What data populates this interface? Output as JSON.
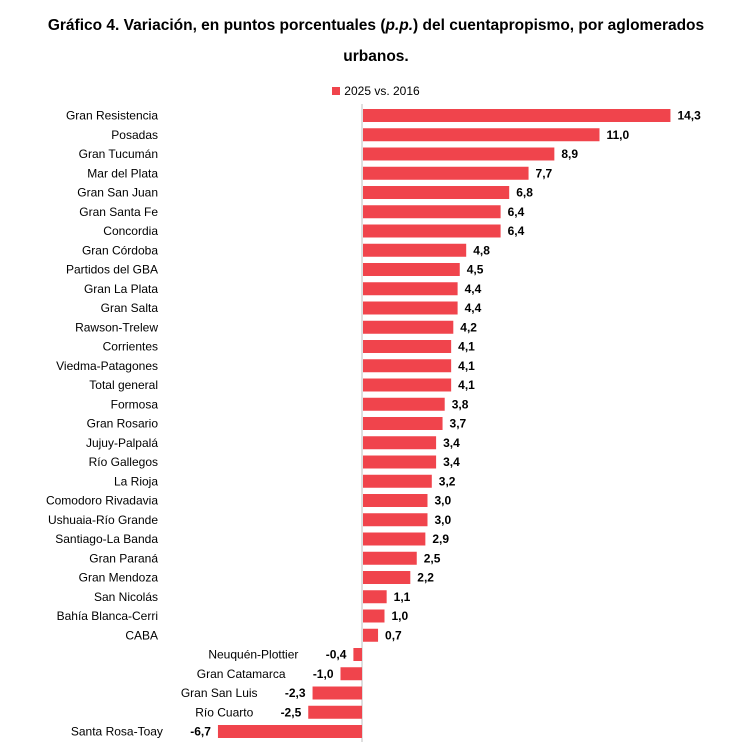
{
  "title": {
    "line1_prefix": "Gráfico 4. Variación, en puntos porcentuales (",
    "line1_italic": "p.p.",
    "line1_suffix": ") del cuentapropismo, por aglomerados",
    "line2": "urbanos."
  },
  "chart_data": {
    "type": "bar",
    "orientation": "horizontal",
    "series": [
      {
        "name": "2025 vs. 2016",
        "color": "#f0444c"
      }
    ],
    "categories": [
      "Gran Resistencia",
      "Posadas",
      "Gran Tucumán",
      "Mar del Plata",
      "Gran San Juan",
      "Gran Santa Fe",
      "Concordia",
      "Gran Córdoba",
      "Partidos del GBA",
      "Gran La Plata",
      "Gran Salta",
      "Rawson-Trelew",
      "Corrientes",
      "Viedma-Patagones",
      "Total general",
      "Formosa",
      "Gran Rosario",
      "Jujuy-Palpalá",
      "Río Gallegos",
      "La Rioja",
      "Comodoro Rivadavia",
      "Ushuaia-Río Grande",
      "Santiago-La Banda",
      "Gran Paraná",
      "Gran Mendoza",
      "San Nicolás",
      "Bahía Blanca-Cerri",
      "CABA",
      "Neuquén-Plottier",
      "Gran Catamarca",
      "Gran San Luis",
      "Río Cuarto",
      "Santa Rosa-Toay"
    ],
    "values": [
      14.3,
      11.0,
      8.9,
      7.7,
      6.8,
      6.4,
      6.4,
      4.8,
      4.5,
      4.4,
      4.4,
      4.2,
      4.1,
      4.1,
      4.1,
      3.8,
      3.7,
      3.4,
      3.4,
      3.2,
      3.0,
      3.0,
      2.9,
      2.5,
      2.2,
      1.1,
      1.0,
      0.7,
      -0.4,
      -1.0,
      -2.3,
      -2.5,
      -6.7
    ],
    "value_labels": [
      "14,3",
      "11,0",
      "8,9",
      "7,7",
      "6,8",
      "6,4",
      "6,4",
      "4,8",
      "4,5",
      "4,4",
      "4,4",
      "4,2",
      "4,1",
      "4,1",
      "4,1",
      "3,8",
      "3,7",
      "3,4",
      "3,4",
      "3,2",
      "3,0",
      "3,0",
      "2,9",
      "2,5",
      "2,2",
      "1,1",
      "1,0",
      "0,7",
      "-0,4",
      "-1,0",
      "-2,3",
      "-2,5",
      "-6,7"
    ],
    "legend_position": "top",
    "grid": false
  }
}
